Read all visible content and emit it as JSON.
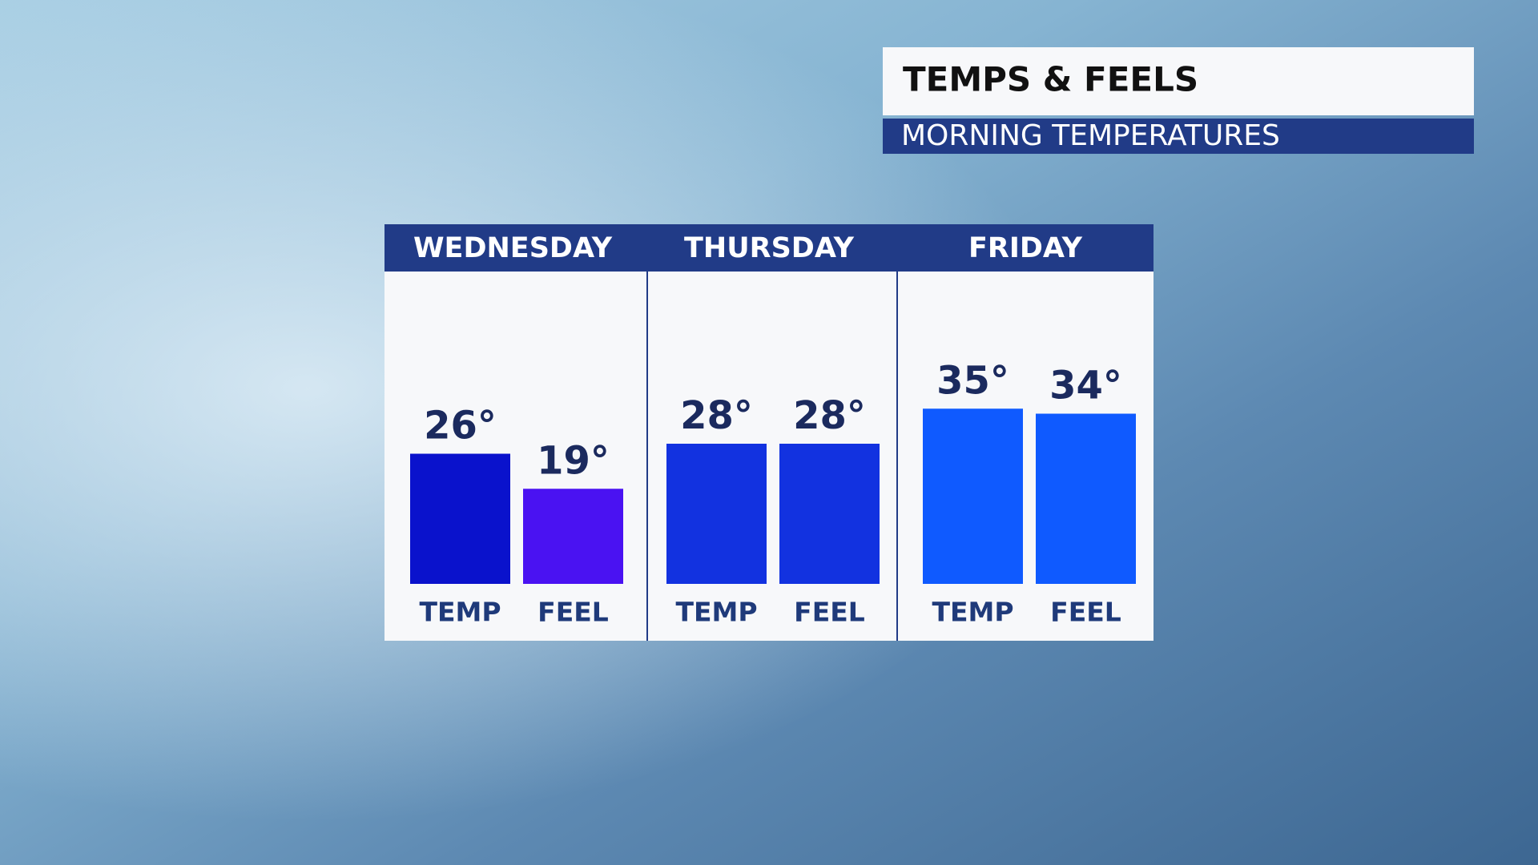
{
  "chart_data": {
    "type": "bar",
    "title": "TEMPS & FEELS",
    "subtitle": "MORNING TEMPERATURES",
    "categories": [
      "WEDNESDAY",
      "THURSDAY",
      "FRIDAY"
    ],
    "series": [
      {
        "name": "TEMP",
        "values": [
          26,
          28,
          35
        ],
        "value_labels": [
          "26°",
          "28°",
          "35°"
        ],
        "colors": [
          "#0a12cc",
          "#1232e0",
          "#0f5aff"
        ]
      },
      {
        "name": "FEEL",
        "values": [
          19,
          28,
          34
        ],
        "value_labels": [
          "19°",
          "28°",
          "34°"
        ],
        "colors": [
          "#4a12f2",
          "#1232e0",
          "#0f5aff"
        ]
      }
    ]
  }
}
